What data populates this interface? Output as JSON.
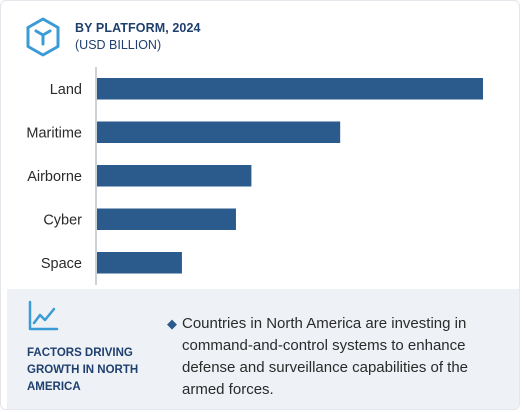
{
  "header": {
    "icon": "cube-hexagon-icon",
    "title": "BY PLATFORM, 2024",
    "subtitle": "(USD BILLION)"
  },
  "chart_data": {
    "type": "bar",
    "orientation": "horizontal",
    "categories": [
      "Land",
      "Maritime",
      "Airborne",
      "Cyber",
      "Space"
    ],
    "values": [
      100,
      63,
      40,
      36,
      22
    ],
    "title": "BY PLATFORM, 2024",
    "unit": "(USD BILLION)",
    "xlabel": "",
    "ylabel": "",
    "xlim": [
      0,
      100
    ],
    "grid": false,
    "bar_color": "#2b5a8c"
  },
  "footer": {
    "icon": "trend-chart-icon",
    "label": "FACTORS DRIVING GROWTH IN NORTH AMERICA",
    "bullet_marker": "◆",
    "bullet": "Countries in North America are investing in command-and-control systems to enhance defense and surveillance capabilities of the armed forces."
  },
  "colors": {
    "primary": "#1f3f6e",
    "bar": "#2b5a8c",
    "accent": "#3a9bd5",
    "footer_bg": "#eef2f6"
  }
}
